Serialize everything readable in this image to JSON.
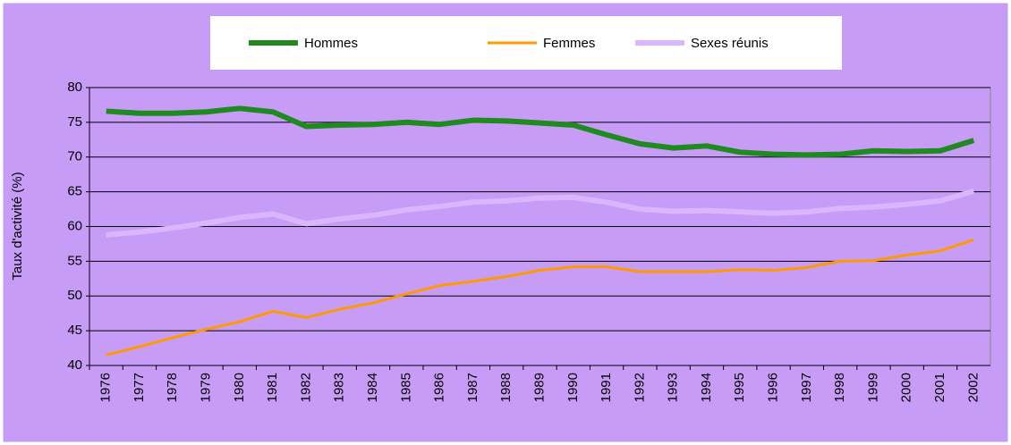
{
  "chart_data": {
    "type": "line",
    "y_label": "Taux d'activité (%)",
    "categories": [
      "1976",
      "1977",
      "1978",
      "1979",
      "1980",
      "1981",
      "1982",
      "1983",
      "1984",
      "1985",
      "1986",
      "1987",
      "1988",
      "1989",
      "1990",
      "1991",
      "1992",
      "1993",
      "1994",
      "1995",
      "1996",
      "1997",
      "1998",
      "1999",
      "2000",
      "2001",
      "2002"
    ],
    "series": [
      {
        "name": "Hommes",
        "color": "#1f8a1f",
        "values": [
          76.6,
          76.3,
          76.3,
          76.5,
          77.0,
          76.5,
          74.4,
          74.6,
          74.7,
          75.0,
          74.7,
          75.3,
          75.2,
          74.9,
          74.6,
          73.2,
          71.9,
          71.3,
          71.6,
          70.7,
          70.4,
          70.3,
          70.4,
          70.9,
          70.8,
          70.9,
          72.4
        ]
      },
      {
        "name": "Femmes",
        "color": "#ff9900",
        "values": [
          41.5,
          42.7,
          44.0,
          45.2,
          46.3,
          47.8,
          46.9,
          48.1,
          49.0,
          50.3,
          51.5,
          52.1,
          52.8,
          53.7,
          54.2,
          54.2,
          53.5,
          53.5,
          53.5,
          53.8,
          53.7,
          54.1,
          55.0,
          55.1,
          55.9,
          56.5,
          58.1
        ]
      },
      {
        "name": "Sexes réunis",
        "color": "#dab6ff",
        "values": [
          58.8,
          59.2,
          59.8,
          60.5,
          61.3,
          61.8,
          60.4,
          61.1,
          61.6,
          62.4,
          62.9,
          63.5,
          63.7,
          64.1,
          64.2,
          63.5,
          62.5,
          62.2,
          62.3,
          62.1,
          61.9,
          62.1,
          62.6,
          62.8,
          63.2,
          63.7,
          65.1
        ]
      }
    ],
    "ylim": [
      40,
      80
    ],
    "yticks": [
      40,
      45,
      50,
      55,
      60,
      65,
      70,
      75,
      80
    ],
    "grid": true,
    "legend": "top"
  }
}
